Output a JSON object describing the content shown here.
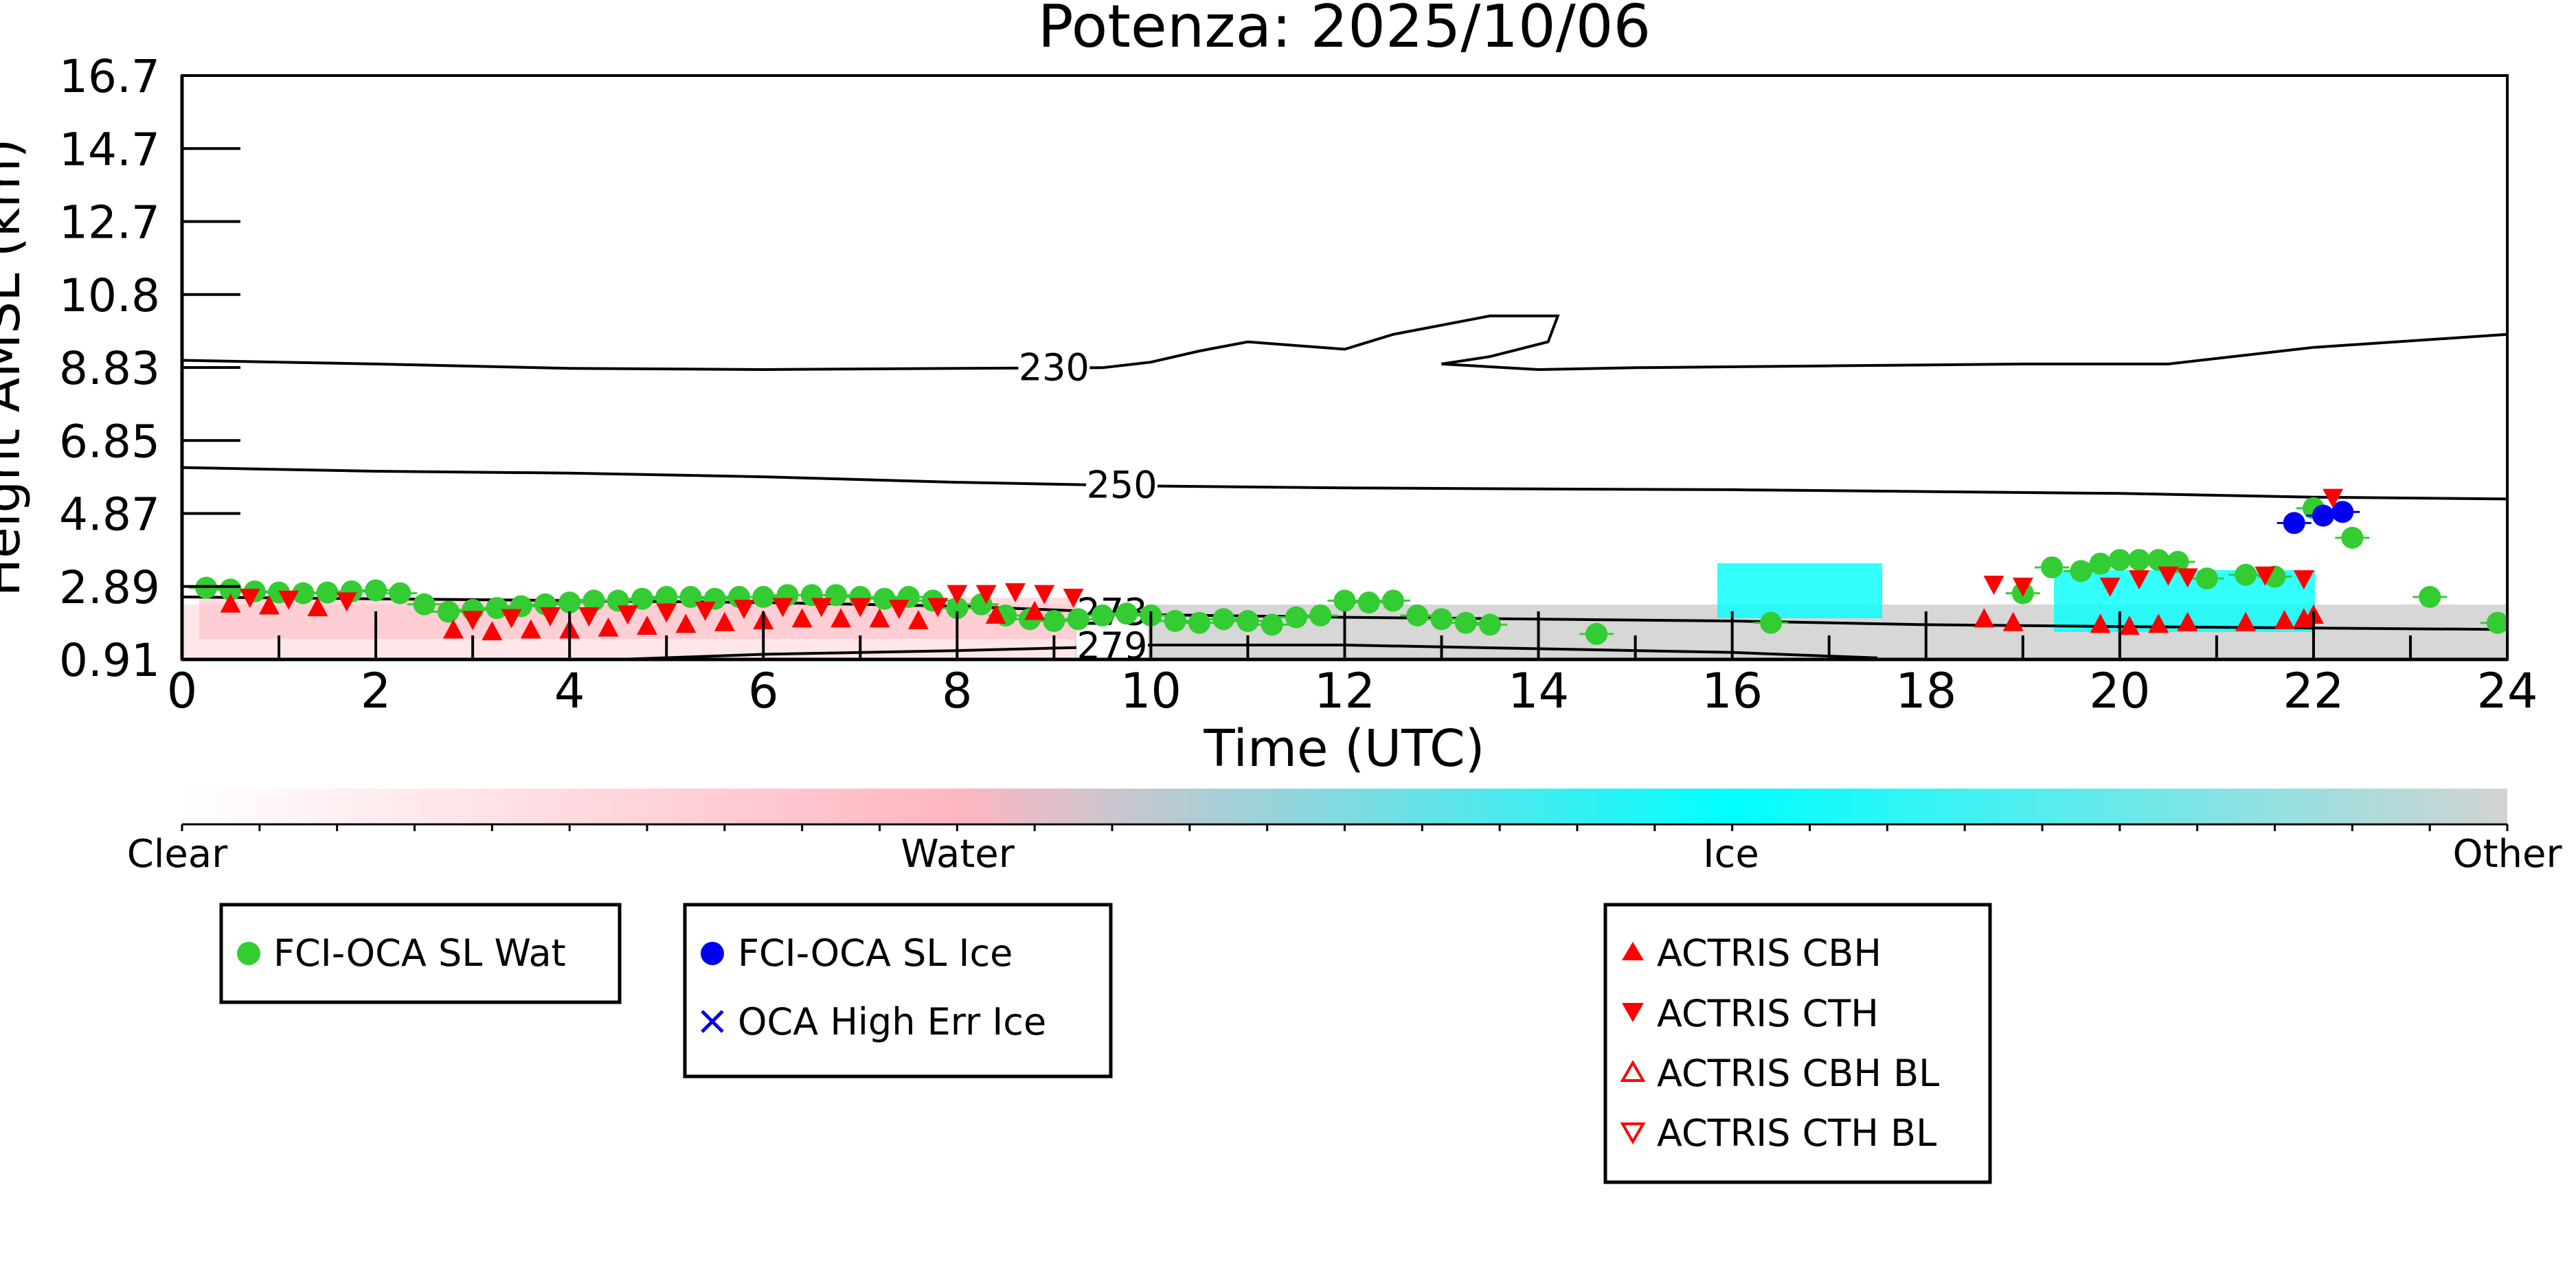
{
  "chart_data": {
    "type": "scatter",
    "title": "Potenza: 2025/10/06",
    "xlabel": "Time (UTC)",
    "ylabel": "Height AMSL (km)",
    "xlim": [
      0,
      24
    ],
    "ylim": [
      0.91,
      16.7
    ],
    "xticks": [
      "0",
      "2",
      "4",
      "6",
      "8",
      "10",
      "12",
      "14",
      "16",
      "18",
      "20",
      "22",
      "24"
    ],
    "yticks": [
      "0.91",
      "2.89",
      "4.87",
      "6.85",
      "8.83",
      "10.8",
      "12.7",
      "14.7",
      "16.7"
    ],
    "grid": false,
    "colorbar": {
      "labels": [
        "Clear",
        "Water",
        "Ice",
        "Other"
      ],
      "colors": [
        "#ffffff",
        "#ffb6c1",
        "#00ffff",
        "#d3d3d3"
      ]
    },
    "contours": [
      {
        "label": "230",
        "points": [
          [
            0,
            9.0
          ],
          [
            2,
            8.9
          ],
          [
            4,
            8.78
          ],
          [
            6,
            8.75
          ],
          [
            8,
            8.78
          ],
          [
            9.5,
            8.8
          ],
          [
            10,
            8.95
          ],
          [
            10.5,
            9.25
          ],
          [
            11,
            9.5
          ],
          [
            12,
            9.3
          ],
          [
            12.5,
            9.7
          ],
          [
            13.5,
            10.2
          ],
          [
            14.2,
            10.2
          ],
          [
            14.1,
            9.5
          ],
          [
            13.5,
            9.1
          ],
          [
            13,
            8.9
          ],
          [
            14,
            8.75
          ],
          [
            15,
            8.8
          ],
          [
            17,
            8.85
          ],
          [
            19,
            8.9
          ],
          [
            20.5,
            8.9
          ],
          [
            22,
            9.35
          ],
          [
            24,
            9.7
          ]
        ]
      },
      {
        "label": "250",
        "points": [
          [
            0,
            6.1
          ],
          [
            2,
            6.0
          ],
          [
            4,
            5.95
          ],
          [
            6,
            5.85
          ],
          [
            8,
            5.7
          ],
          [
            10,
            5.6
          ],
          [
            12,
            5.55
          ],
          [
            14,
            5.52
          ],
          [
            16,
            5.5
          ],
          [
            18,
            5.45
          ],
          [
            20,
            5.4
          ],
          [
            22,
            5.3
          ],
          [
            24,
            5.25
          ]
        ]
      },
      {
        "label": "273",
        "points": [
          [
            0,
            2.6
          ],
          [
            2,
            2.55
          ],
          [
            4,
            2.5
          ],
          [
            6,
            2.45
          ],
          [
            8,
            2.35
          ],
          [
            9.5,
            2.2
          ],
          [
            10,
            2.12
          ],
          [
            12,
            2.05
          ],
          [
            14,
            2.0
          ],
          [
            16,
            1.95
          ],
          [
            18,
            1.85
          ],
          [
            20,
            1.8
          ],
          [
            24,
            1.72
          ]
        ]
      },
      {
        "label": "279",
        "points": [
          [
            4.5,
            0.91
          ],
          [
            6,
            1.05
          ],
          [
            8,
            1.15
          ],
          [
            9.5,
            1.25
          ],
          [
            10,
            1.3
          ],
          [
            12,
            1.3
          ],
          [
            14,
            1.2
          ],
          [
            16,
            1.1
          ],
          [
            17.5,
            0.95
          ]
        ]
      }
    ],
    "series": [
      {
        "name": "FCI-OCA SL Wat",
        "color": "#33cc33",
        "marker": "circle",
        "x": [
          0.25,
          0.5,
          0.75,
          1.0,
          1.25,
          1.5,
          1.75,
          2.0,
          2.25,
          2.5,
          2.75,
          3.0,
          3.25,
          3.5,
          3.75,
          4.0,
          4.25,
          4.5,
          4.75,
          5.0,
          5.25,
          5.5,
          5.75,
          6.0,
          6.25,
          6.5,
          6.75,
          7.0,
          7.25,
          7.5,
          7.75,
          8.0,
          8.25,
          8.5,
          8.75,
          9.0,
          9.25,
          9.5,
          9.75,
          10.0,
          10.25,
          10.5,
          10.75,
          11.0,
          11.25,
          11.5,
          11.75,
          12.0,
          12.25,
          12.5,
          12.75,
          13.0,
          13.25,
          13.5,
          14.6,
          16.4,
          19.0,
          19.3,
          19.6,
          19.8,
          20.0,
          20.2,
          20.4,
          20.6,
          20.9,
          21.3,
          21.6,
          22.0,
          22.4,
          23.2,
          23.9
        ],
        "y": [
          2.85,
          2.8,
          2.75,
          2.72,
          2.7,
          2.72,
          2.75,
          2.78,
          2.7,
          2.4,
          2.2,
          2.25,
          2.3,
          2.35,
          2.4,
          2.45,
          2.5,
          2.5,
          2.55,
          2.6,
          2.6,
          2.55,
          2.6,
          2.6,
          2.65,
          2.65,
          2.65,
          2.6,
          2.55,
          2.6,
          2.5,
          2.3,
          2.4,
          2.1,
          2.0,
          1.95,
          2.0,
          2.1,
          2.15,
          2.1,
          1.95,
          1.9,
          2.0,
          1.95,
          1.85,
          2.05,
          2.1,
          2.5,
          2.45,
          2.5,
          2.1,
          2.0,
          1.9,
          1.85,
          1.6,
          1.9,
          2.7,
          3.4,
          3.3,
          3.5,
          3.6,
          3.6,
          3.6,
          3.55,
          3.1,
          3.2,
          3.15,
          5.0,
          4.2,
          2.6,
          1.9
        ]
      },
      {
        "name": "FCI-OCA SL Ice",
        "color": "#0000ee",
        "marker": "circle",
        "x": [
          21.8,
          22.1,
          22.3
        ],
        "y": [
          4.6,
          4.8,
          4.9
        ]
      },
      {
        "name": "OCA High Err Ice",
        "color": "#0000ee",
        "marker": "x",
        "x": [],
        "y": []
      },
      {
        "name": "ACTRIS CBH",
        "color": "#ff0000",
        "marker": "triangle-up",
        "x": [
          0.5,
          0.9,
          1.4,
          2.8,
          3.2,
          3.6,
          4.0,
          4.4,
          4.8,
          5.2,
          5.6,
          6.0,
          6.4,
          6.8,
          7.2,
          7.6,
          8.4,
          8.8,
          18.6,
          18.9,
          19.8,
          20.1,
          20.4,
          20.7,
          21.3,
          21.7,
          21.9,
          22.0
        ],
        "y": [
          2.4,
          2.35,
          2.3,
          1.7,
          1.65,
          1.7,
          1.7,
          1.75,
          1.8,
          1.85,
          1.9,
          1.95,
          2.0,
          2.0,
          2.0,
          1.95,
          2.1,
          2.2,
          2.0,
          1.9,
          1.85,
          1.8,
          1.85,
          1.9,
          1.9,
          1.95,
          2.0,
          2.1
        ]
      },
      {
        "name": "ACTRIS CTH",
        "color": "#ff0000",
        "marker": "triangle-down",
        "x": [
          0.7,
          1.1,
          1.7,
          3.0,
          3.4,
          3.8,
          4.2,
          4.6,
          5.0,
          5.4,
          5.8,
          6.2,
          6.6,
          7.0,
          7.4,
          7.8,
          8.0,
          8.3,
          8.6,
          8.9,
          9.2,
          18.7,
          19.0,
          19.9,
          20.2,
          20.5,
          20.7,
          21.5,
          21.9,
          22.2
        ],
        "y": [
          2.6,
          2.55,
          2.5,
          2.0,
          2.05,
          2.1,
          2.1,
          2.15,
          2.2,
          2.25,
          2.3,
          2.35,
          2.35,
          2.35,
          2.3,
          2.35,
          2.7,
          2.7,
          2.75,
          2.7,
          2.6,
          2.95,
          2.9,
          2.9,
          3.1,
          3.2,
          3.15,
          3.2,
          3.1,
          5.3
        ]
      },
      {
        "name": "ACTRIS CBH BL",
        "color": "#ff0000",
        "marker": "triangle-up-open",
        "x": [],
        "y": []
      },
      {
        "name": "ACTRIS CTH BL",
        "color": "#ff0000",
        "marker": "triangle-down-open",
        "x": [],
        "y": []
      }
    ],
    "legend_groups": [
      [
        "FCI-OCA SL Wat"
      ],
      [
        "FCI-OCA SL Ice",
        "OCA High Err Ice"
      ],
      [
        "ACTRIS CBH",
        "ACTRIS CTH",
        "ACTRIS CBH BL",
        "ACTRIS CTH BL"
      ]
    ],
    "colors": {
      "water": "#ffb6c1",
      "ice": "#00ffff",
      "other": "#d3d3d3",
      "wat_marker": "#33cc33",
      "ice_marker": "#0000ee",
      "actris": "#ff0000"
    }
  }
}
